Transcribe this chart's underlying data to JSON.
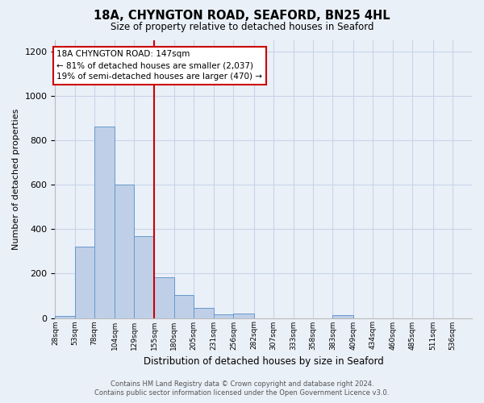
{
  "title": "18A, CHYNGTON ROAD, SEAFORD, BN25 4HL",
  "subtitle": "Size of property relative to detached houses in Seaford",
  "xlabel": "Distribution of detached houses by size in Seaford",
  "ylabel": "Number of detached properties",
  "bar_values": [
    10,
    320,
    860,
    600,
    370,
    185,
    105,
    47,
    15,
    20,
    0,
    0,
    0,
    0,
    12,
    0,
    0,
    0,
    0,
    0
  ],
  "bin_labels": [
    "28sqm",
    "53sqm",
    "78sqm",
    "104sqm",
    "129sqm",
    "155sqm",
    "180sqm",
    "205sqm",
    "231sqm",
    "256sqm",
    "282sqm",
    "307sqm",
    "333sqm",
    "358sqm",
    "383sqm",
    "409sqm",
    "434sqm",
    "460sqm",
    "485sqm",
    "511sqm",
    "536sqm"
  ],
  "bin_edges": [
    28,
    53,
    78,
    104,
    129,
    155,
    180,
    205,
    231,
    256,
    282,
    307,
    333,
    358,
    383,
    409,
    434,
    460,
    485,
    511,
    536
  ],
  "bar_color": "#BFCFE8",
  "bar_edge_color": "#6699CC",
  "vline_color": "#CC0000",
  "vline_x_idx": 5,
  "annotation_line1": "18A CHYNGTON ROAD: 147sqm",
  "annotation_line2": "← 81% of detached houses are smaller (2,037)",
  "annotation_line3": "19% of semi-detached houses are larger (470) →",
  "annotation_box_color": "#ffffff",
  "annotation_box_edge": "#CC0000",
  "ylim": [
    0,
    1250
  ],
  "yticks": [
    0,
    200,
    400,
    600,
    800,
    1000,
    1200
  ],
  "grid_color": "#C8D4E8",
  "bg_color": "#EAF0F8",
  "footer_line1": "Contains HM Land Registry data © Crown copyright and database right 2024.",
  "footer_line2": "Contains public sector information licensed under the Open Government Licence v3.0."
}
